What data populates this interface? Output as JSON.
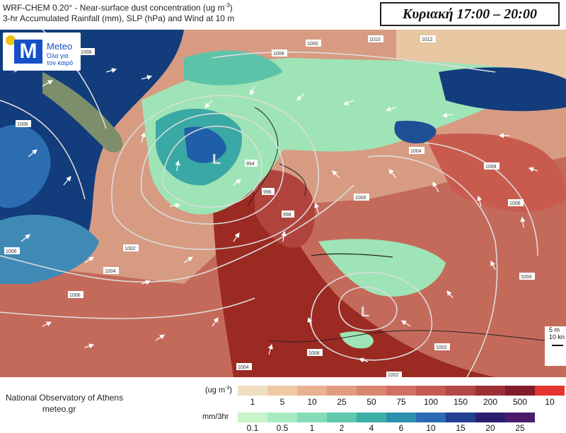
{
  "header": {
    "title_line1": "WRF-CHEM 0.20° - Near-surface dust concentration (ug m",
    "title_line1_sup": "-3",
    "title_line1_end": ")",
    "title_line2": "3-hr Accumulated Rainfall (mm), SLP (hPa) and Wind at 10 m",
    "time_label": "Κυριακή  17:00 – 20:00"
  },
  "logo": {
    "brand": "Meteo",
    "slogan": "Όλα για τον καιρό",
    "letter": "M"
  },
  "map": {
    "lows": [
      "L",
      "L"
    ],
    "isobar_labels": [
      "1006",
      "1006",
      "1000",
      "1010",
      "1012",
      "1008",
      "1006",
      "1004",
      "1002",
      "1004",
      "1006",
      "1008",
      "994",
      "996",
      "998",
      "1000",
      "1004",
      "1006",
      "1008",
      "1002",
      "1004",
      "1002"
    ],
    "wind_scale": {
      "line1": "5 m",
      "line2": "10 kn"
    },
    "colors": {
      "sea_rain_dark": "#0e3a7a",
      "rain_light": "#9ee6b8",
      "dust_high": "#9b2a22",
      "dust_mid": "#d0725e",
      "dust_low": "#e8c3a2"
    }
  },
  "footer": {
    "institution": "National Observatory of Athens",
    "website": "meteo.gr",
    "dust_unit": "(ug m",
    "dust_unit_sup": "-3",
    "dust_unit_end": ")",
    "rain_unit": "mm/3hr",
    "dust_ticks": [
      "1",
      "5",
      "10",
      "25",
      "50",
      "75",
      "100",
      "150",
      "200",
      "500",
      "10"
    ],
    "dust_colors": [
      "#f1dfc1",
      "#efc9a4",
      "#e8b18f",
      "#e09c80",
      "#d98670",
      "#d17062",
      "#c55a54",
      "#b34745",
      "#9d2f36",
      "#811c2b",
      "#e3342f"
    ],
    "rain_ticks": [
      "0.1",
      "0.5",
      "1",
      "2",
      "4",
      "6",
      "10",
      "15",
      "20",
      "25"
    ],
    "rain_colors": [
      "#c8f4c8",
      "#a8ebc1",
      "#86dcb8",
      "#60c8ad",
      "#3cb0a6",
      "#2d8fae",
      "#2a6bb3",
      "#233f8f",
      "#2a1f6e",
      "#4b1b6b"
    ]
  }
}
